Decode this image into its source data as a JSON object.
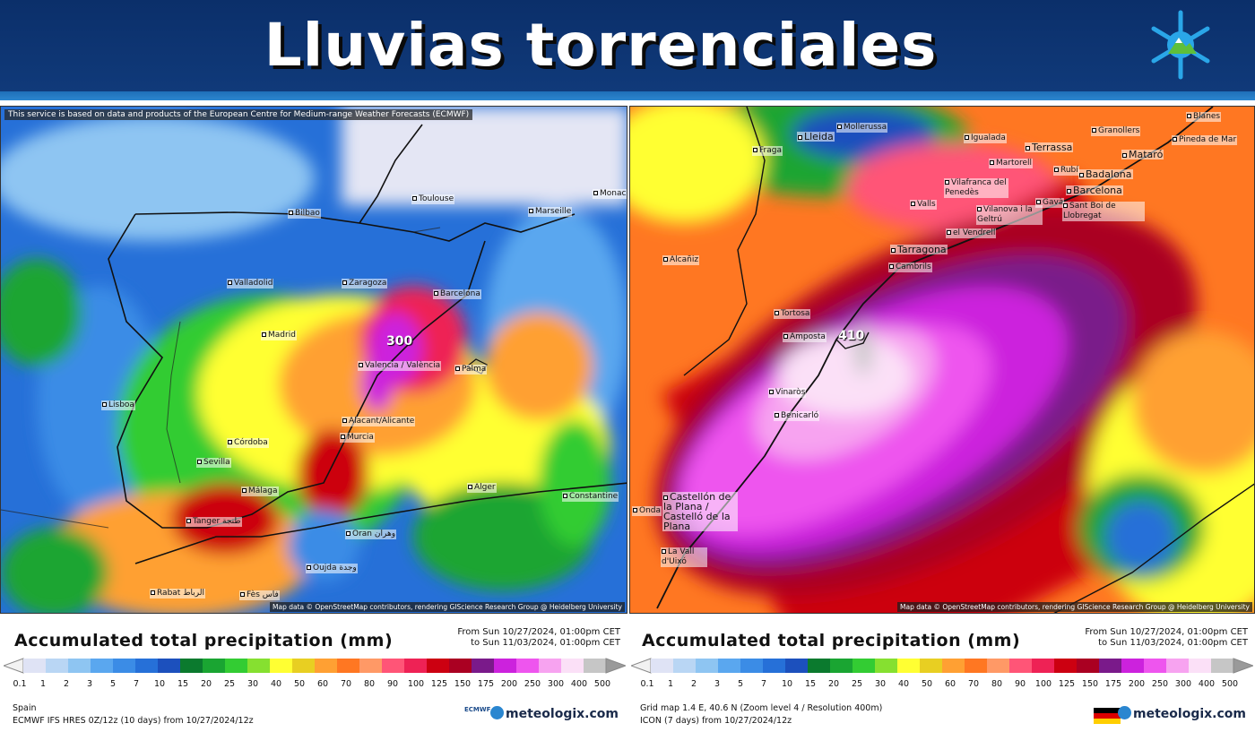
{
  "header": {
    "title": "Lluvias torrenciales",
    "logo_icon": "snowflake-mountain-icon"
  },
  "left_map": {
    "notice": "This service is based on data and products of the European Centre for Medium-range Weather Forecasts (ECMWF)",
    "attribution": "Map data © OpenStreetMap contributors, rendering GIScience Research Group @ Heidelberg University",
    "cities": [
      "Bilbao",
      "Toulouse",
      "Marseille",
      "Monaco",
      "Valladolid",
      "Zaragoza",
      "Barcelona",
      "Madrid",
      "Valencia / València",
      "Palma",
      "Lisboa",
      "Alacant/Alicante",
      "Murcia",
      "Córdoba",
      "Sevilla",
      "Málaga",
      "Tanger طنجة",
      "Alger",
      "Constantine",
      "Oran وهران",
      "Oujda وجدة",
      "Rabat الرباط",
      "Fès فاس"
    ],
    "max_value": "300"
  },
  "right_map": {
    "attribution": "Map data © OpenStreetMap contributors, rendering GIScience Research Group @ Heidelberg University",
    "cities": [
      "Lleida",
      "Mollerussa",
      "Fraga",
      "Igualada",
      "Granollers",
      "Blanes",
      "Pineda de Mar",
      "Mataró",
      "Terrassa",
      "Martorell",
      "Rubí",
      "Badalona",
      "Vilafranca del Penedès",
      "Barcelona",
      "Gavà",
      "Sant Boi de Llobregat",
      "Valls",
      "Vilanova i la Geltrú",
      "el Vendrell",
      "Tarragona",
      "Cambrils",
      "Alcañiz",
      "Tortosa",
      "Amposta",
      "Vinaròs",
      "Benicarló",
      "Castellón de la Plana / Castelló de la Plana",
      "Onda",
      "La Vall d'Uixó"
    ],
    "max_value": "410"
  },
  "legend": {
    "title": "Accumulated total precipitation (mm)",
    "range_from": "From Sun 10/27/2024, 01:00pm CET",
    "range_to": "to Sun 11/03/2024, 01:00pm CET",
    "ticks": [
      "0.1",
      "1",
      "2",
      "3",
      "5",
      "7",
      "10",
      "15",
      "20",
      "25",
      "30",
      "40",
      "50",
      "60",
      "70",
      "80",
      "90",
      "100",
      "125",
      "150",
      "175",
      "200",
      "250",
      "300",
      "400",
      "500"
    ],
    "colors": [
      "#dfe3f5",
      "#b9d6f4",
      "#8ec5f2",
      "#5aa7ef",
      "#3b8ce6",
      "#2670d8",
      "#1c50bd",
      "#0b7a2e",
      "#1aa532",
      "#33cc33",
      "#86e030",
      "#ffff33",
      "#e8cf22",
      "#ffa033",
      "#ff7722",
      "#ff9966",
      "#ff5577",
      "#ee2255",
      "#cc0011",
      "#aa0022",
      "#7a1a8a",
      "#cc22dd",
      "#ee55ee",
      "#f7a3f0",
      "#fbe0f7",
      "#c6c6c6"
    ]
  },
  "left_panel": {
    "region": "Spain",
    "model": "ECMWF IFS HRES 0Z/12z (10 days) from 10/27/2024/12z",
    "ecmwf_logo": "ECMWF",
    "brand": "meteologix.com"
  },
  "right_panel": {
    "grid": "Grid map 1.4 E, 40.6 N (Zoom level 4 / Resolution 400m)",
    "model": "ICON (7 days) from 10/27/2024/12z",
    "flag_icon": "germany-flag-icon",
    "brand": "meteologix.com"
  }
}
